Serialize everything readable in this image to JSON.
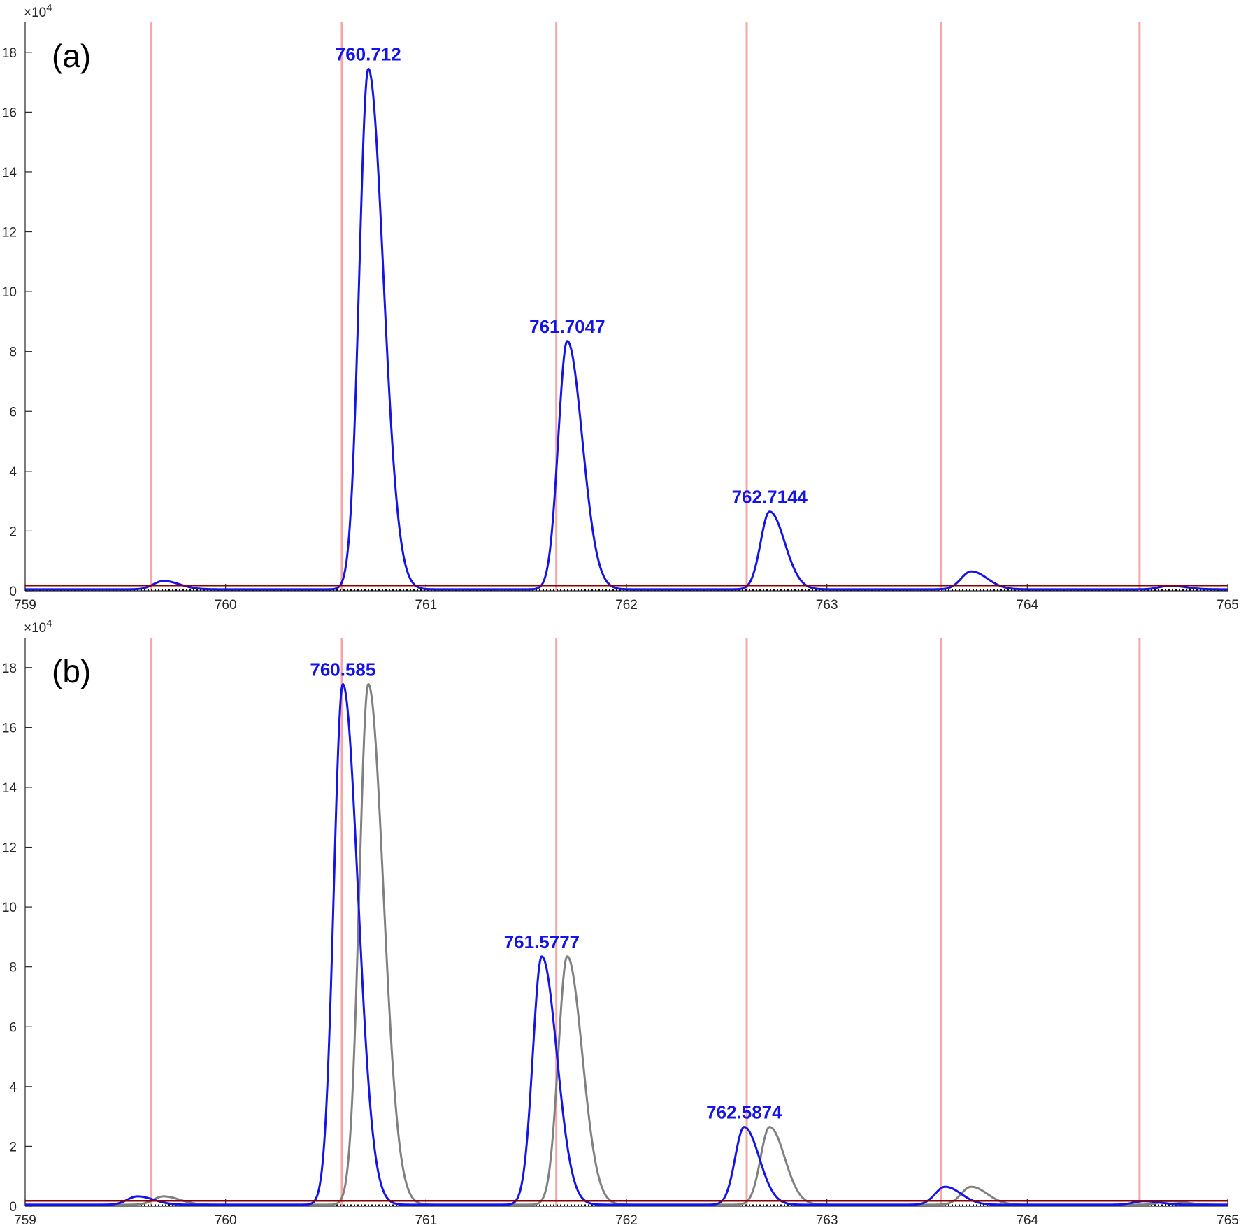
{
  "chart_data": [
    {
      "type": "line",
      "panel_label": "(a)",
      "y_exponent_label": "×10",
      "y_exponent_power": "4",
      "xlim": [
        759,
        765
      ],
      "ylim": [
        0,
        19
      ],
      "x_ticks": [
        "759",
        "760",
        "761",
        "762",
        "763",
        "764",
        "765"
      ],
      "y_ticks": [
        "0",
        "2",
        "4",
        "6",
        "8",
        "10",
        "12",
        "14",
        "16",
        "18"
      ],
      "grid": false,
      "reference_lines_x": [
        759.63,
        760.58,
        761.65,
        762.6,
        763.57,
        764.56
      ],
      "reference_line_color": "#f4a7a7",
      "threshold_y": 0.18,
      "threshold_color": "#8b0000",
      "baseline_color": "#000000",
      "series": [
        {
          "color": "#1414e6",
          "peaks": [
            {
              "x": 759.69,
              "y": 0.28,
              "w_left": 0.05,
              "w_right": 0.08
            },
            {
              "x": 760.712,
              "y": 17.4,
              "w_left": 0.045,
              "w_right": 0.075
            },
            {
              "x": 761.7047,
              "y": 8.3,
              "w_left": 0.045,
              "w_right": 0.075
            },
            {
              "x": 762.7144,
              "y": 2.6,
              "w_left": 0.045,
              "w_right": 0.075
            },
            {
              "x": 763.72,
              "y": 0.6,
              "w_left": 0.05,
              "w_right": 0.08
            },
            {
              "x": 764.71,
              "y": 0.12,
              "w_left": 0.05,
              "w_right": 0.08
            }
          ]
        }
      ],
      "annotations": [
        {
          "text": "760.712",
          "x": 760.712,
          "y": 17.4
        },
        {
          "text": "761.7047",
          "x": 761.7047,
          "y": 8.3
        },
        {
          "text": "762.7144",
          "x": 762.7144,
          "y": 2.6
        }
      ]
    },
    {
      "type": "line",
      "panel_label": "(b)",
      "y_exponent_label": "×10",
      "y_exponent_power": "4",
      "xlim": [
        759,
        765
      ],
      "ylim": [
        0,
        19
      ],
      "x_ticks": [
        "759",
        "760",
        "761",
        "762",
        "763",
        "764",
        "765"
      ],
      "y_ticks": [
        "0",
        "2",
        "4",
        "6",
        "8",
        "10",
        "12",
        "14",
        "16",
        "18"
      ],
      "grid": false,
      "reference_lines_x": [
        759.63,
        760.58,
        761.65,
        762.6,
        763.57,
        764.56
      ],
      "reference_line_color": "#f4a7a7",
      "threshold_y": 0.18,
      "threshold_color": "#8b0000",
      "baseline_color": "#000000",
      "series": [
        {
          "color": "#808080",
          "peaks": [
            {
              "x": 759.69,
              "y": 0.28,
              "w_left": 0.05,
              "w_right": 0.08
            },
            {
              "x": 760.712,
              "y": 17.4,
              "w_left": 0.045,
              "w_right": 0.075
            },
            {
              "x": 761.7047,
              "y": 8.3,
              "w_left": 0.045,
              "w_right": 0.075
            },
            {
              "x": 762.7144,
              "y": 2.6,
              "w_left": 0.045,
              "w_right": 0.075
            },
            {
              "x": 763.72,
              "y": 0.6,
              "w_left": 0.05,
              "w_right": 0.08
            },
            {
              "x": 764.71,
              "y": 0.12,
              "w_left": 0.05,
              "w_right": 0.08
            }
          ]
        },
        {
          "color": "#1414e6",
          "peaks": [
            {
              "x": 759.56,
              "y": 0.28,
              "w_left": 0.05,
              "w_right": 0.08
            },
            {
              "x": 760.585,
              "y": 17.4,
              "w_left": 0.045,
              "w_right": 0.075
            },
            {
              "x": 761.5777,
              "y": 8.3,
              "w_left": 0.045,
              "w_right": 0.075
            },
            {
              "x": 762.5874,
              "y": 2.6,
              "w_left": 0.045,
              "w_right": 0.075
            },
            {
              "x": 763.59,
              "y": 0.6,
              "w_left": 0.05,
              "w_right": 0.08
            },
            {
              "x": 764.58,
              "y": 0.12,
              "w_left": 0.05,
              "w_right": 0.08
            }
          ]
        }
      ],
      "annotations": [
        {
          "text": "760.585",
          "x": 760.585,
          "y": 17.4
        },
        {
          "text": "761.5777",
          "x": 761.5777,
          "y": 8.3
        },
        {
          "text": "762.5874",
          "x": 762.5874,
          "y": 2.6
        }
      ]
    }
  ]
}
